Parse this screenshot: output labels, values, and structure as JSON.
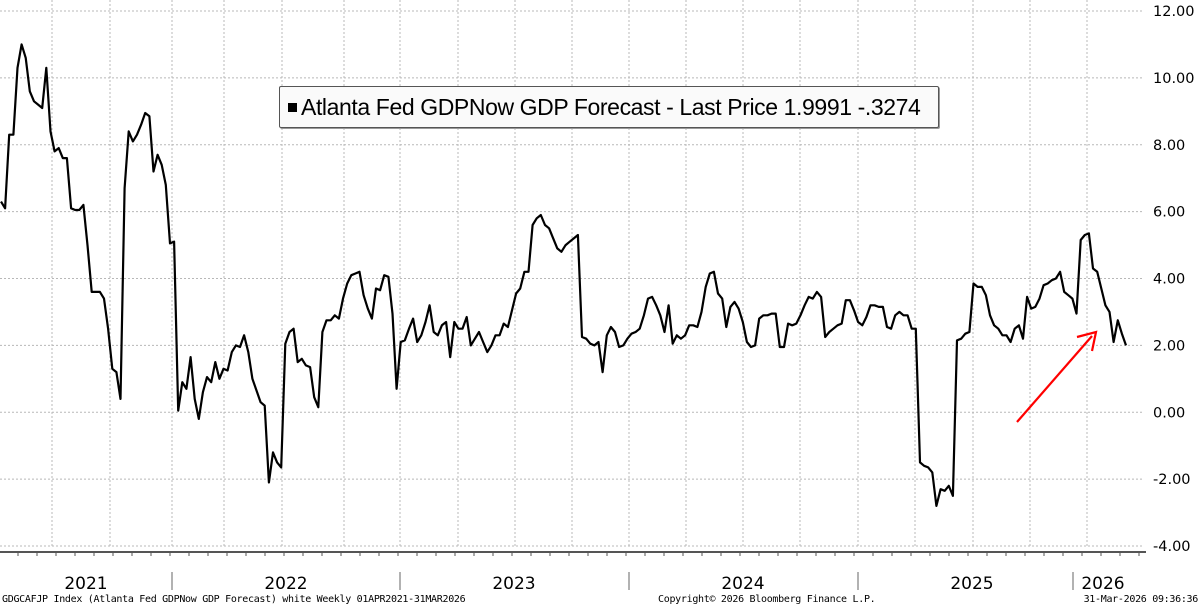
{
  "chart_data": {
    "type": "line",
    "title": "",
    "legend": {
      "placement": "top-center",
      "entries": [
        {
          "label": "Atlanta Fed GDPNow GDP Forecast - Last Price",
          "last_value": "1.9991",
          "change": "-.3274",
          "color": "#000000"
        }
      ]
    },
    "xlabel": "",
    "ylabel": "",
    "ylim": [
      -4,
      12
    ],
    "y_ticks": [
      "12.00",
      "10.00",
      "8.00",
      "6.00",
      "4.00",
      "2.00",
      "0.00",
      "-2.00",
      "-4.00"
    ],
    "y_tick_values": [
      12,
      10,
      8,
      6,
      4,
      2,
      0,
      -2,
      -4
    ],
    "y_axis_side": "right",
    "x_range": [
      "2021-04-01",
      "2026-03-31"
    ],
    "x_year_labels": [
      "2021",
      "2022",
      "2023",
      "2024",
      "2025",
      "2026"
    ],
    "grid": true,
    "frequency": "Weekly",
    "series": [
      {
        "name": "Atlanta Fed GDPNow GDP Forecast",
        "color": "#000000",
        "x_weeks_from_start": [
          0,
          1,
          2,
          3,
          4,
          5,
          6,
          7,
          8,
          9,
          10,
          11,
          12,
          13,
          14,
          15,
          16,
          17,
          18,
          19,
          20,
          21,
          22,
          23,
          24,
          25,
          26,
          27,
          28,
          29,
          30,
          31,
          32,
          33,
          34,
          35,
          36,
          37,
          38,
          39,
          40,
          41,
          42,
          43,
          44,
          45,
          46,
          47,
          48,
          49,
          50,
          51,
          52,
          53,
          54,
          55,
          56,
          57,
          58,
          59,
          60,
          61,
          62,
          63,
          64,
          65,
          66,
          67,
          68,
          69,
          70,
          71,
          72,
          73,
          74,
          75,
          76,
          77,
          78,
          79,
          80,
          81,
          82,
          83,
          84,
          85,
          86,
          87,
          88,
          89,
          90,
          91,
          92,
          93,
          94,
          95,
          96,
          97,
          98,
          99,
          100,
          101,
          102,
          103,
          104,
          105,
          106,
          107,
          108,
          109,
          110,
          111,
          112,
          113,
          114,
          115,
          116,
          117,
          118,
          119,
          120,
          121,
          122,
          123,
          124,
          125,
          126,
          127,
          128,
          129,
          130,
          131,
          132,
          133,
          134,
          135,
          136,
          137,
          138,
          139,
          140,
          141,
          142,
          143,
          144,
          145,
          146,
          147,
          148,
          149,
          150,
          151,
          152,
          153,
          154,
          155,
          156,
          157,
          158,
          159,
          160,
          161,
          162,
          163,
          164,
          165,
          166,
          167,
          168,
          169,
          170,
          171,
          172,
          173,
          174,
          175,
          176,
          177,
          178,
          179,
          180,
          181,
          182,
          183,
          184,
          185,
          186,
          187,
          188,
          189,
          190,
          191,
          192,
          193,
          194,
          195,
          196,
          197,
          198,
          199,
          200,
          201,
          202,
          203,
          204,
          205,
          206,
          207,
          208,
          209,
          210,
          211,
          212,
          213,
          214,
          215,
          216,
          217,
          218,
          219,
          220,
          221,
          222,
          223,
          224,
          225,
          226,
          227,
          228,
          229,
          230,
          231,
          232,
          233,
          234,
          235,
          236,
          237,
          238,
          239,
          240,
          241,
          242,
          243,
          244,
          245,
          246,
          247,
          248,
          249,
          250,
          251,
          252,
          253,
          254,
          255,
          256,
          257,
          258,
          259,
          260
        ],
        "values": [
          6.3,
          6.1,
          8.3,
          8.3,
          10.3,
          11.0,
          10.6,
          9.6,
          9.3,
          9.2,
          9.1,
          10.3,
          8.4,
          7.8,
          7.9,
          7.6,
          7.6,
          6.1,
          6.05,
          6.05,
          6.2,
          5.0,
          3.6,
          3.6,
          3.6,
          3.4,
          2.5,
          1.3,
          1.2,
          0.4,
          6.7,
          8.4,
          8.1,
          8.3,
          8.6,
          8.95,
          8.85,
          7.2,
          7.7,
          7.4,
          6.8,
          5.05,
          5.1,
          0.05,
          0.9,
          0.7,
          1.65,
          0.4,
          -0.2,
          0.6,
          1.05,
          0.9,
          1.5,
          1.0,
          1.3,
          1.25,
          1.8,
          2.0,
          1.95,
          2.3,
          1.8,
          1.0,
          0.65,
          0.3,
          0.2,
          -2.1,
          -1.2,
          -1.5,
          -1.65,
          2.05,
          2.4,
          2.5,
          1.5,
          1.6,
          1.4,
          1.35,
          0.45,
          0.15,
          2.4,
          2.75,
          2.75,
          2.9,
          2.8,
          3.4,
          3.85,
          4.1,
          4.15,
          4.2,
          3.5,
          3.1,
          2.8,
          3.7,
          3.65,
          4.1,
          4.05,
          2.95,
          0.7,
          2.1,
          2.15,
          2.5,
          2.8,
          2.1,
          2.3,
          2.7,
          3.2,
          2.4,
          2.3,
          2.6,
          2.7,
          1.65,
          2.7,
          2.5,
          2.5,
          2.85,
          2.0,
          2.2,
          2.4,
          2.1,
          1.8,
          2.0,
          2.3,
          2.3,
          2.65,
          2.55,
          3.05,
          3.55,
          3.7,
          4.2,
          4.2,
          5.6,
          5.8,
          5.9,
          5.6,
          5.5,
          5.2,
          4.9,
          4.8,
          5.0,
          5.1,
          5.2,
          5.3,
          2.25,
          2.2,
          2.05,
          2.0,
          2.1,
          1.2,
          2.3,
          2.55,
          2.4,
          1.95,
          2.0,
          2.2,
          2.35,
          2.4,
          2.5,
          2.9,
          3.4,
          3.45,
          3.2,
          2.9,
          2.4,
          3.2,
          2.05,
          2.3,
          2.2,
          2.3,
          2.6,
          2.6,
          2.55,
          3.0,
          3.75,
          4.15,
          4.2,
          3.55,
          3.4,
          2.55,
          3.15,
          3.3,
          3.1,
          2.7,
          2.1,
          1.95,
          2.0,
          2.8,
          2.9,
          2.9,
          2.95,
          2.95,
          1.95,
          1.95,
          2.65,
          2.6,
          2.65,
          2.9,
          3.2,
          3.45,
          3.4,
          3.6,
          3.45,
          2.25,
          2.4,
          2.5,
          2.6,
          2.65,
          3.35,
          3.35,
          3.05,
          2.7,
          2.6,
          2.85,
          3.2,
          3.2,
          3.15,
          3.15,
          2.55,
          2.5,
          2.9,
          3.0,
          2.9,
          2.9,
          2.5,
          2.5,
          -1.5,
          -1.6,
          -1.65,
          -1.8,
          -2.8,
          -2.3,
          -2.35,
          -2.2,
          -2.5,
          2.15,
          2.2,
          2.35,
          2.4,
          3.85,
          3.75,
          3.75,
          3.5,
          2.9,
          2.6,
          2.5,
          2.3,
          2.3,
          2.1,
          2.5,
          2.6,
          2.2,
          3.45,
          3.1,
          3.15,
          3.4,
          3.8,
          3.85,
          3.95,
          4.0,
          4.2,
          3.6,
          3.5,
          3.4,
          2.95,
          5.15,
          5.3,
          5.35,
          4.3,
          4.2,
          3.7,
          3.2,
          3.0,
          2.1,
          2.75,
          2.35,
          1.9991
        ]
      }
    ]
  },
  "footer": {
    "left": "GDGCAFJP Index (Atlanta Fed GDPNow GDP Forecast) white Weekly 01APR2021-31MAR2026",
    "center": "Copyright© 2026 Bloomberg Finance L.P.",
    "right": "31-Mar-2026 09:36:36"
  },
  "annotation": {
    "type": "arrow",
    "color": "#ff0000",
    "description": "red arrow pointing to recent decline"
  }
}
